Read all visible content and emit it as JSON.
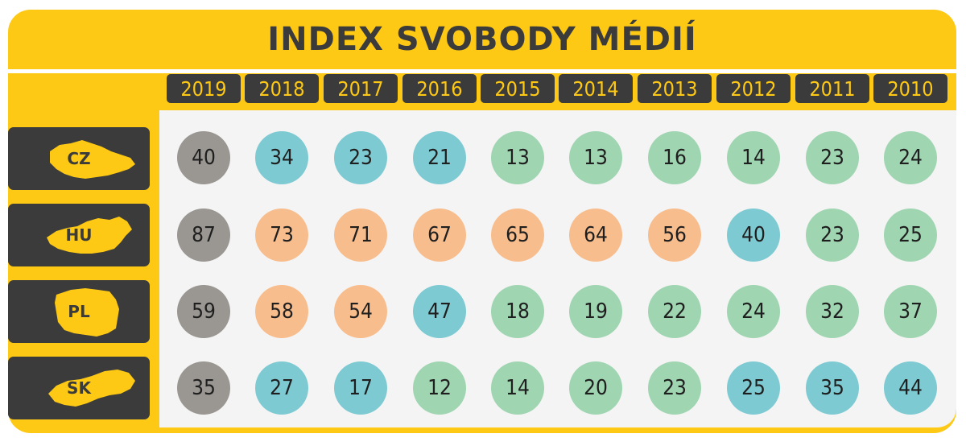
{
  "title": "INDEX SVOBODY MÉDIÍ",
  "years": [
    "2019",
    "2018",
    "2017",
    "2016",
    "2015",
    "2014",
    "2013",
    "2012",
    "2011",
    "2010"
  ],
  "colors": {
    "frame": "#fdc915",
    "dark": "#3b3b3b",
    "gray": "#9a9692",
    "blue": "#7ecad2",
    "green": "#9fd5b1",
    "orange": "#f8bd8d"
  },
  "countries": [
    {
      "code": "CZ",
      "icon": "czech-republic-map-icon",
      "values": [
        "40",
        "34",
        "23",
        "21",
        "13",
        "13",
        "16",
        "14",
        "23",
        "24"
      ],
      "tones": [
        "gray",
        "blue",
        "blue",
        "blue",
        "green",
        "green",
        "green",
        "green",
        "green",
        "green"
      ]
    },
    {
      "code": "HU",
      "icon": "hungary-map-icon",
      "values": [
        "87",
        "73",
        "71",
        "67",
        "65",
        "64",
        "56",
        "40",
        "23",
        "25"
      ],
      "tones": [
        "gray",
        "orange",
        "orange",
        "orange",
        "orange",
        "orange",
        "orange",
        "blue",
        "green",
        "green"
      ]
    },
    {
      "code": "PL",
      "icon": "poland-map-icon",
      "values": [
        "59",
        "58",
        "54",
        "47",
        "18",
        "19",
        "22",
        "24",
        "32",
        "37"
      ],
      "tones": [
        "gray",
        "orange",
        "orange",
        "blue",
        "green",
        "green",
        "green",
        "green",
        "green",
        "green"
      ]
    },
    {
      "code": "SK",
      "icon": "slovakia-map-icon",
      "values": [
        "35",
        "27",
        "17",
        "12",
        "14",
        "20",
        "23",
        "25",
        "35",
        "44"
      ],
      "tones": [
        "gray",
        "blue",
        "blue",
        "green",
        "green",
        "green",
        "green",
        "blue",
        "blue",
        "blue"
      ]
    }
  ]
}
